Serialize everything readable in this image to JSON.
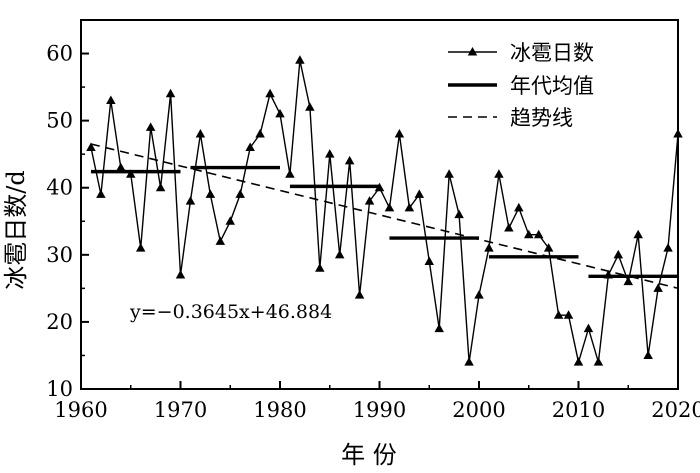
{
  "chart_data": {
    "type": "line",
    "xlabel": "年 份",
    "ylabel": "冰雹日数/d",
    "xlim": [
      1960,
      2020
    ],
    "ylim": [
      10,
      65
    ],
    "xticks": [
      1960,
      1970,
      1980,
      1990,
      2000,
      2010,
      2020
    ],
    "yticks": [
      10,
      20,
      30,
      40,
      50,
      60
    ],
    "legend_position": "top-right",
    "annotation": "y=−0.3645x+46.884",
    "series": [
      {
        "name": "冰雹日数",
        "style": "line-triangle-markers",
        "x": [
          1961,
          1962,
          1963,
          1964,
          1965,
          1966,
          1967,
          1968,
          1969,
          1970,
          1971,
          1972,
          1973,
          1974,
          1975,
          1976,
          1977,
          1978,
          1979,
          1980,
          1981,
          1982,
          1983,
          1984,
          1985,
          1986,
          1987,
          1988,
          1989,
          1990,
          1991,
          1992,
          1993,
          1994,
          1995,
          1996,
          1997,
          1998,
          1999,
          2000,
          2001,
          2002,
          2003,
          2004,
          2005,
          2006,
          2007,
          2008,
          2009,
          2010,
          2011,
          2012,
          2013,
          2014,
          2015,
          2016,
          2017,
          2018,
          2019,
          2020
        ],
        "y": [
          46,
          39,
          53,
          43,
          42,
          31,
          49,
          40,
          54,
          27,
          38,
          48,
          39,
          32,
          35,
          39,
          46,
          48,
          54,
          51,
          42,
          59,
          52,
          28,
          45,
          30,
          44,
          24,
          38,
          40,
          37,
          48,
          37,
          39,
          29,
          19,
          42,
          36,
          14,
          24,
          31,
          42,
          34,
          37,
          33,
          33,
          31,
          21,
          21,
          14,
          19,
          14,
          27,
          30,
          26,
          33,
          15,
          25,
          31,
          48
        ]
      },
      {
        "name": "年代均值",
        "style": "thick-segments",
        "segments": [
          {
            "x0": 1961,
            "x1": 1970,
            "y": 42.4
          },
          {
            "x0": 1971,
            "x1": 1980,
            "y": 43.0
          },
          {
            "x0": 1981,
            "x1": 1990,
            "y": 40.2
          },
          {
            "x0": 1991,
            "x1": 2000,
            "y": 32.5
          },
          {
            "x0": 2001,
            "x1": 2010,
            "y": 29.7
          },
          {
            "x0": 2011,
            "x1": 2020,
            "y": 26.8
          }
        ]
      },
      {
        "name": "趋势线",
        "style": "dashed",
        "slope": -0.3645,
        "intercept": 46.884,
        "x_start_index": 1,
        "x_end_index": 60,
        "x_start_year": 1961
      }
    ]
  }
}
